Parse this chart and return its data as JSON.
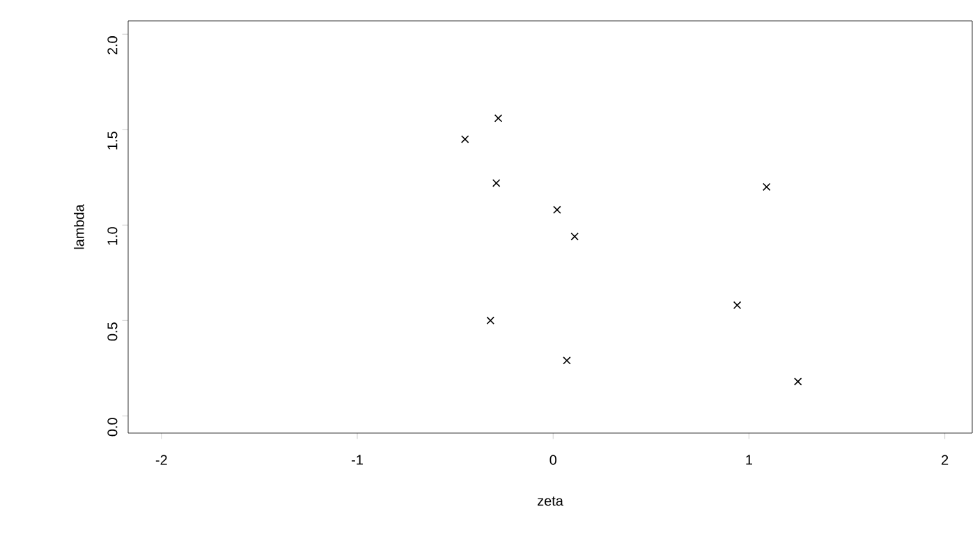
{
  "chart_data": {
    "type": "scatter",
    "xlabel": "zeta",
    "ylabel": "lambda",
    "x": [
      -0.45,
      -0.28,
      -0.29,
      0.02,
      0.11,
      -0.32,
      0.07,
      0.94,
      1.09,
      1.25
    ],
    "values": [
      1.45,
      1.56,
      1.22,
      1.08,
      0.94,
      0.5,
      0.29,
      0.58,
      1.2,
      0.18
    ],
    "color": "#000000",
    "marker": "cross",
    "xlim": [
      -2.17,
      2.14
    ],
    "ylim": [
      -0.09,
      2.07
    ],
    "xticks": [
      -2,
      -1,
      0,
      1,
      2
    ],
    "yticks": [
      {
        "value": 0,
        "label": "0.0"
      },
      {
        "value": 0.5,
        "label": "0.5"
      },
      {
        "value": 1,
        "label": "1.0"
      },
      {
        "value": 1.5,
        "label": "1.5"
      },
      {
        "value": 2,
        "label": "2.0"
      }
    ]
  }
}
